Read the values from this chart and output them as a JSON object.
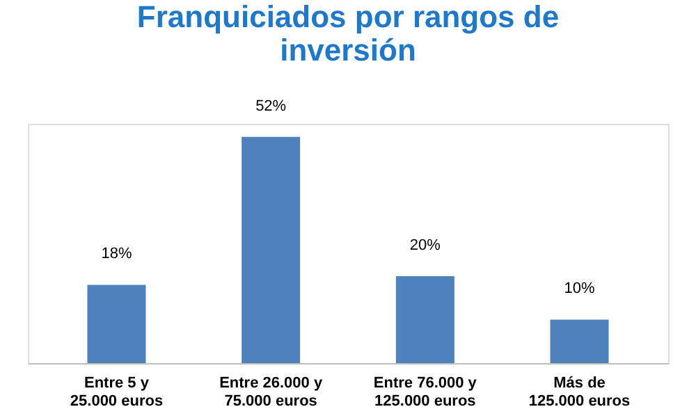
{
  "chart_data": {
    "type": "bar",
    "title": "Franquiciados por rangos de\ninversión",
    "categories": [
      "Entre 5 y\n25.000 euros",
      "Entre 26.000 y\n75.000 euros",
      "Entre 76.000 y\n125.000 euros",
      "Más de\n125.000 euros"
    ],
    "values": [
      18,
      52,
      20,
      10
    ],
    "value_labels": [
      "18%",
      "52%",
      "20%",
      "10%"
    ],
    "color": "#4f81bd"
  }
}
